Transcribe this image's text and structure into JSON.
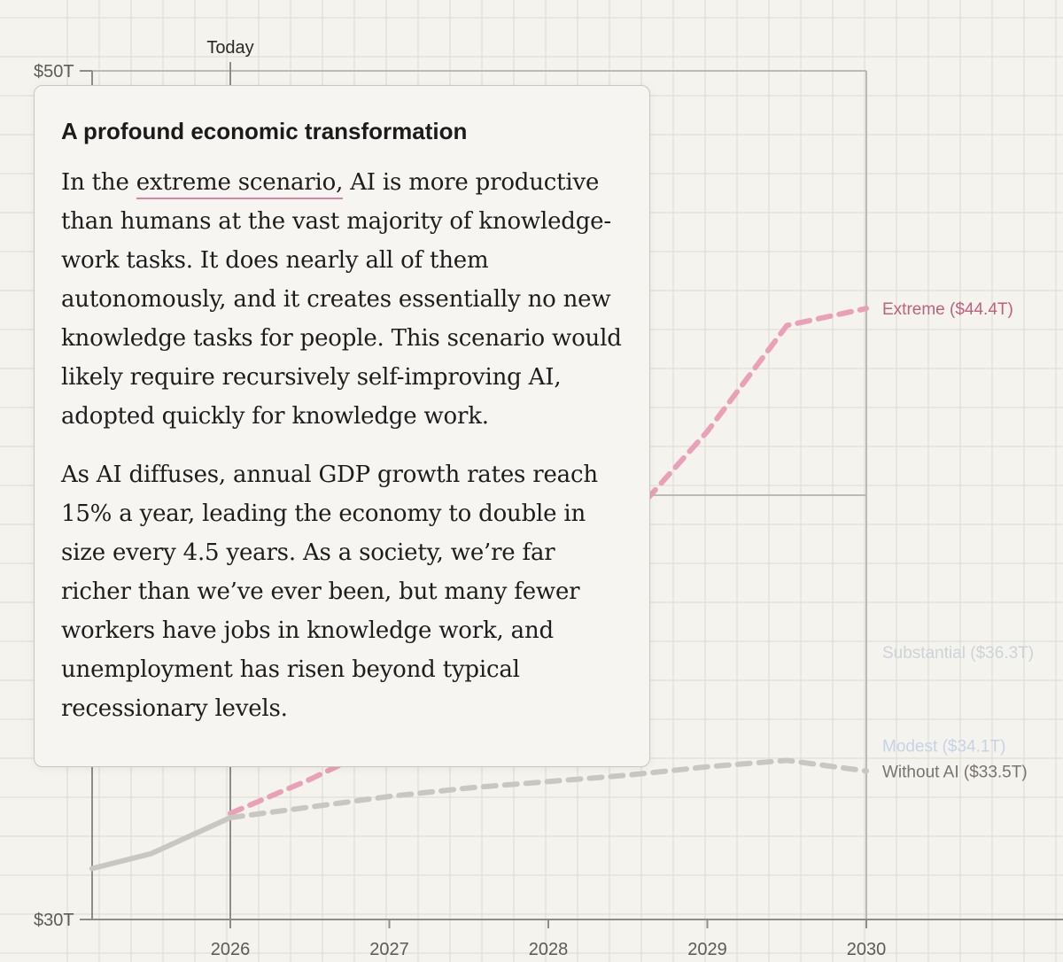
{
  "chart_data": {
    "type": "line",
    "x_ticks": [
      "2026",
      "2027",
      "2028",
      "2029",
      "2030"
    ],
    "y_ticks": [
      "$50T",
      "$30T"
    ],
    "ylim": [
      30,
      50
    ],
    "xlim": [
      2025.13,
      2030
    ],
    "today_label": "Today",
    "today_x": 2026,
    "grid": true,
    "series": [
      {
        "name": "Extreme ($44.4T)",
        "color": "#e9a0b8",
        "label_color": "#c0607f",
        "x": [
          2026,
          2026.5,
          2027,
          2027.5,
          2028,
          2028.5,
          2029,
          2029.5,
          2030
        ],
        "y": [
          32.5,
          33.3,
          34.2,
          35.5,
          37.0,
          39.4,
          41.5,
          44.0,
          44.4
        ]
      },
      {
        "name": "Substantial ($36.3T)",
        "color": "#d9d6d0",
        "label_color": "#cdd3da",
        "x": [
          2030
        ],
        "y": [
          36.3
        ]
      },
      {
        "name": "Modest ($34.1T)",
        "color": "#d9d6d0",
        "label_color": "#c6d3e6",
        "x": [
          2030
        ],
        "y": [
          34.1
        ]
      },
      {
        "name": "Without AI ($33.5T)",
        "color": "#c9c7c2",
        "label_color": "#77746e",
        "x": [
          2026,
          2026.5,
          2027,
          2027.5,
          2028,
          2028.5,
          2029,
          2029.5,
          2030
        ],
        "y": [
          32.4,
          32.65,
          32.9,
          33.1,
          33.25,
          33.4,
          33.6,
          33.75,
          33.5
        ]
      }
    ],
    "history": {
      "color": "#c9c7c2",
      "x": [
        2025.13,
        2025.5,
        2026
      ],
      "y": [
        31.2,
        31.55,
        32.4
      ]
    }
  },
  "tooltip": {
    "title": "A profound economic transformation",
    "p1_lead": "In the ",
    "p1_highlight": "extreme scenario,",
    "p1_rest": " AI is more productive than humans at the vast majority of knowledge-work tasks. It does nearly all of them autonomously, and it creates essentially no new knowledge tasks for people. This scenario would likely require recursively self-improving AI, adopted quickly for knowledge work.",
    "p2": "As AI diffuses, annual GDP growth rates reach 15% a year, leading the economy to double in size every 4.5 years. As a society, we’re far richer than we’ve ever been, but many fewer workers have jobs in knowledge work, and unemployment has risen beyond typical recessionary levels."
  }
}
